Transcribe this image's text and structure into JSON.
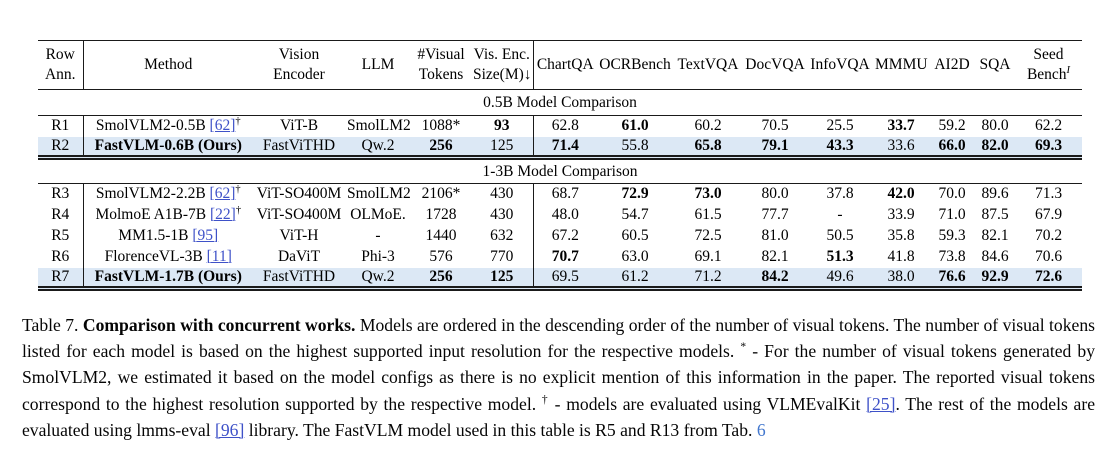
{
  "colors": {
    "link": "#3e51c8",
    "ref": "#4277ce",
    "highlight": "#dce8f5"
  },
  "table": {
    "headers": [
      {
        "l1": "Row",
        "l2": "Ann."
      },
      {
        "l1": "Method"
      },
      {
        "l1": "Vision",
        "l2": "Encoder"
      },
      {
        "l1": "LLM"
      },
      {
        "l1": "#Visual",
        "l2": "Tokens"
      },
      {
        "l1": "Vis. Enc.",
        "l2": "Size(M)↓"
      },
      {
        "l1": "ChartQA"
      },
      {
        "l1": "OCRBench"
      },
      {
        "l1": "TextVQA"
      },
      {
        "l1": "DocVQA"
      },
      {
        "l1": "InfoVQA"
      },
      {
        "l1": "MMMU"
      },
      {
        "l1": "AI2D"
      },
      {
        "l1": "SQA"
      },
      {
        "l1": "Seed",
        "l2": "Bench",
        "sup": "I"
      }
    ],
    "sections": [
      {
        "title": "0.5B Model Comparison",
        "rows": [
          {
            "ann": "R1",
            "method": "SmolVLM2-0.5B",
            "cite": "[62]",
            "dagger": "†",
            "bold_method": false,
            "vision": "ViT-B",
            "llm": "SmolLM2",
            "highlight": false,
            "values": [
              "1088*",
              "93",
              "62.8",
              "61.0",
              "60.2",
              "70.5",
              "25.5",
              "33.7",
              "59.2",
              "80.0",
              "62.2"
            ],
            "bold": [
              false,
              true,
              false,
              true,
              false,
              false,
              false,
              true,
              false,
              false,
              false
            ]
          },
          {
            "ann": "R2",
            "method": "FastVLM-0.6B (Ours)",
            "cite": "",
            "dagger": "",
            "bold_method": true,
            "vision": "FastViTHD",
            "llm": "Qw.2",
            "highlight": true,
            "values": [
              "256",
              "125",
              "71.4",
              "55.8",
              "65.8",
              "79.1",
              "43.3",
              "33.6",
              "66.0",
              "82.0",
              "69.3"
            ],
            "bold": [
              true,
              false,
              true,
              false,
              true,
              true,
              true,
              false,
              true,
              true,
              true
            ]
          }
        ]
      },
      {
        "title": "1-3B Model Comparison",
        "rows": [
          {
            "ann": "R3",
            "method": "SmolVLM2-2.2B",
            "cite": "[62]",
            "dagger": "†",
            "bold_method": false,
            "vision": "ViT-SO400M",
            "llm": "SmolLM2",
            "highlight": false,
            "values": [
              "2106*",
              "430",
              "68.7",
              "72.9",
              "73.0",
              "80.0",
              "37.8",
              "42.0",
              "70.0",
              "89.6",
              "71.3"
            ],
            "bold": [
              false,
              false,
              false,
              true,
              true,
              false,
              false,
              true,
              false,
              false,
              false
            ]
          },
          {
            "ann": "R4",
            "method": "MolmoE A1B-7B",
            "cite": "[22]",
            "dagger": "†",
            "bold_method": false,
            "vision": "ViT-SO400M",
            "llm": "OLMoE.",
            "highlight": false,
            "values": [
              "1728",
              "430",
              "48.0",
              "54.7",
              "61.5",
              "77.7",
              "-",
              "33.9",
              "71.0",
              "87.5",
              "67.9"
            ],
            "bold": [
              false,
              false,
              false,
              false,
              false,
              false,
              false,
              false,
              false,
              false,
              false
            ]
          },
          {
            "ann": "R5",
            "method": "MM1.5-1B",
            "cite": "[95]",
            "dagger": "",
            "bold_method": false,
            "vision": "ViT-H",
            "llm": "-",
            "highlight": false,
            "values": [
              "1440",
              "632",
              "67.2",
              "60.5",
              "72.5",
              "81.0",
              "50.5",
              "35.8",
              "59.3",
              "82.1",
              "70.2"
            ],
            "bold": [
              false,
              false,
              false,
              false,
              false,
              false,
              false,
              false,
              false,
              false,
              false
            ]
          },
          {
            "ann": "R6",
            "method": "FlorenceVL-3B",
            "cite": "[11]",
            "dagger": "",
            "bold_method": false,
            "vision": "DaViT",
            "llm": "Phi-3",
            "highlight": false,
            "values": [
              "576",
              "770",
              "70.7",
              "63.0",
              "69.1",
              "82.1",
              "51.3",
              "41.8",
              "73.8",
              "84.6",
              "70.6"
            ],
            "bold": [
              false,
              false,
              true,
              false,
              false,
              false,
              true,
              false,
              false,
              false,
              false
            ]
          },
          {
            "ann": "R7",
            "method": "FastVLM-1.7B (Ours)",
            "cite": "",
            "dagger": "",
            "bold_method": true,
            "vision": "FastViTHD",
            "llm": "Qw.2",
            "highlight": true,
            "values": [
              "256",
              "125",
              "69.5",
              "61.2",
              "71.2",
              "84.2",
              "49.6",
              "38.0",
              "76.6",
              "92.9",
              "72.6"
            ],
            "bold": [
              true,
              true,
              false,
              false,
              false,
              true,
              false,
              false,
              true,
              true,
              true
            ]
          }
        ]
      }
    ]
  },
  "caption": {
    "label": "Table 7.",
    "title": "Comparison with concurrent works.",
    "s1": "Models are ordered in the descending order of the number of visual tokens. The number of visual tokens listed for each model is based on the highest supported input resolution for the respective models.",
    "sup1": "*",
    "s2": "- For the number of visual tokens generated by SmolVLM2, we estimated it based on the model configs as there is no explicit mention of this information in the paper. The reported visual tokens correspond to the highest resolution supported by the respective model.",
    "sup2": "†",
    "s3": "- models are evaluated using VLMEvalKit",
    "cite1": "[25]",
    "s4": ". The rest of the models are evaluated using lmms-eval",
    "cite2": "[96]",
    "s5": "library. The FastVLM model used in this table is R5 and R13 from Tab.",
    "ref": "6"
  }
}
